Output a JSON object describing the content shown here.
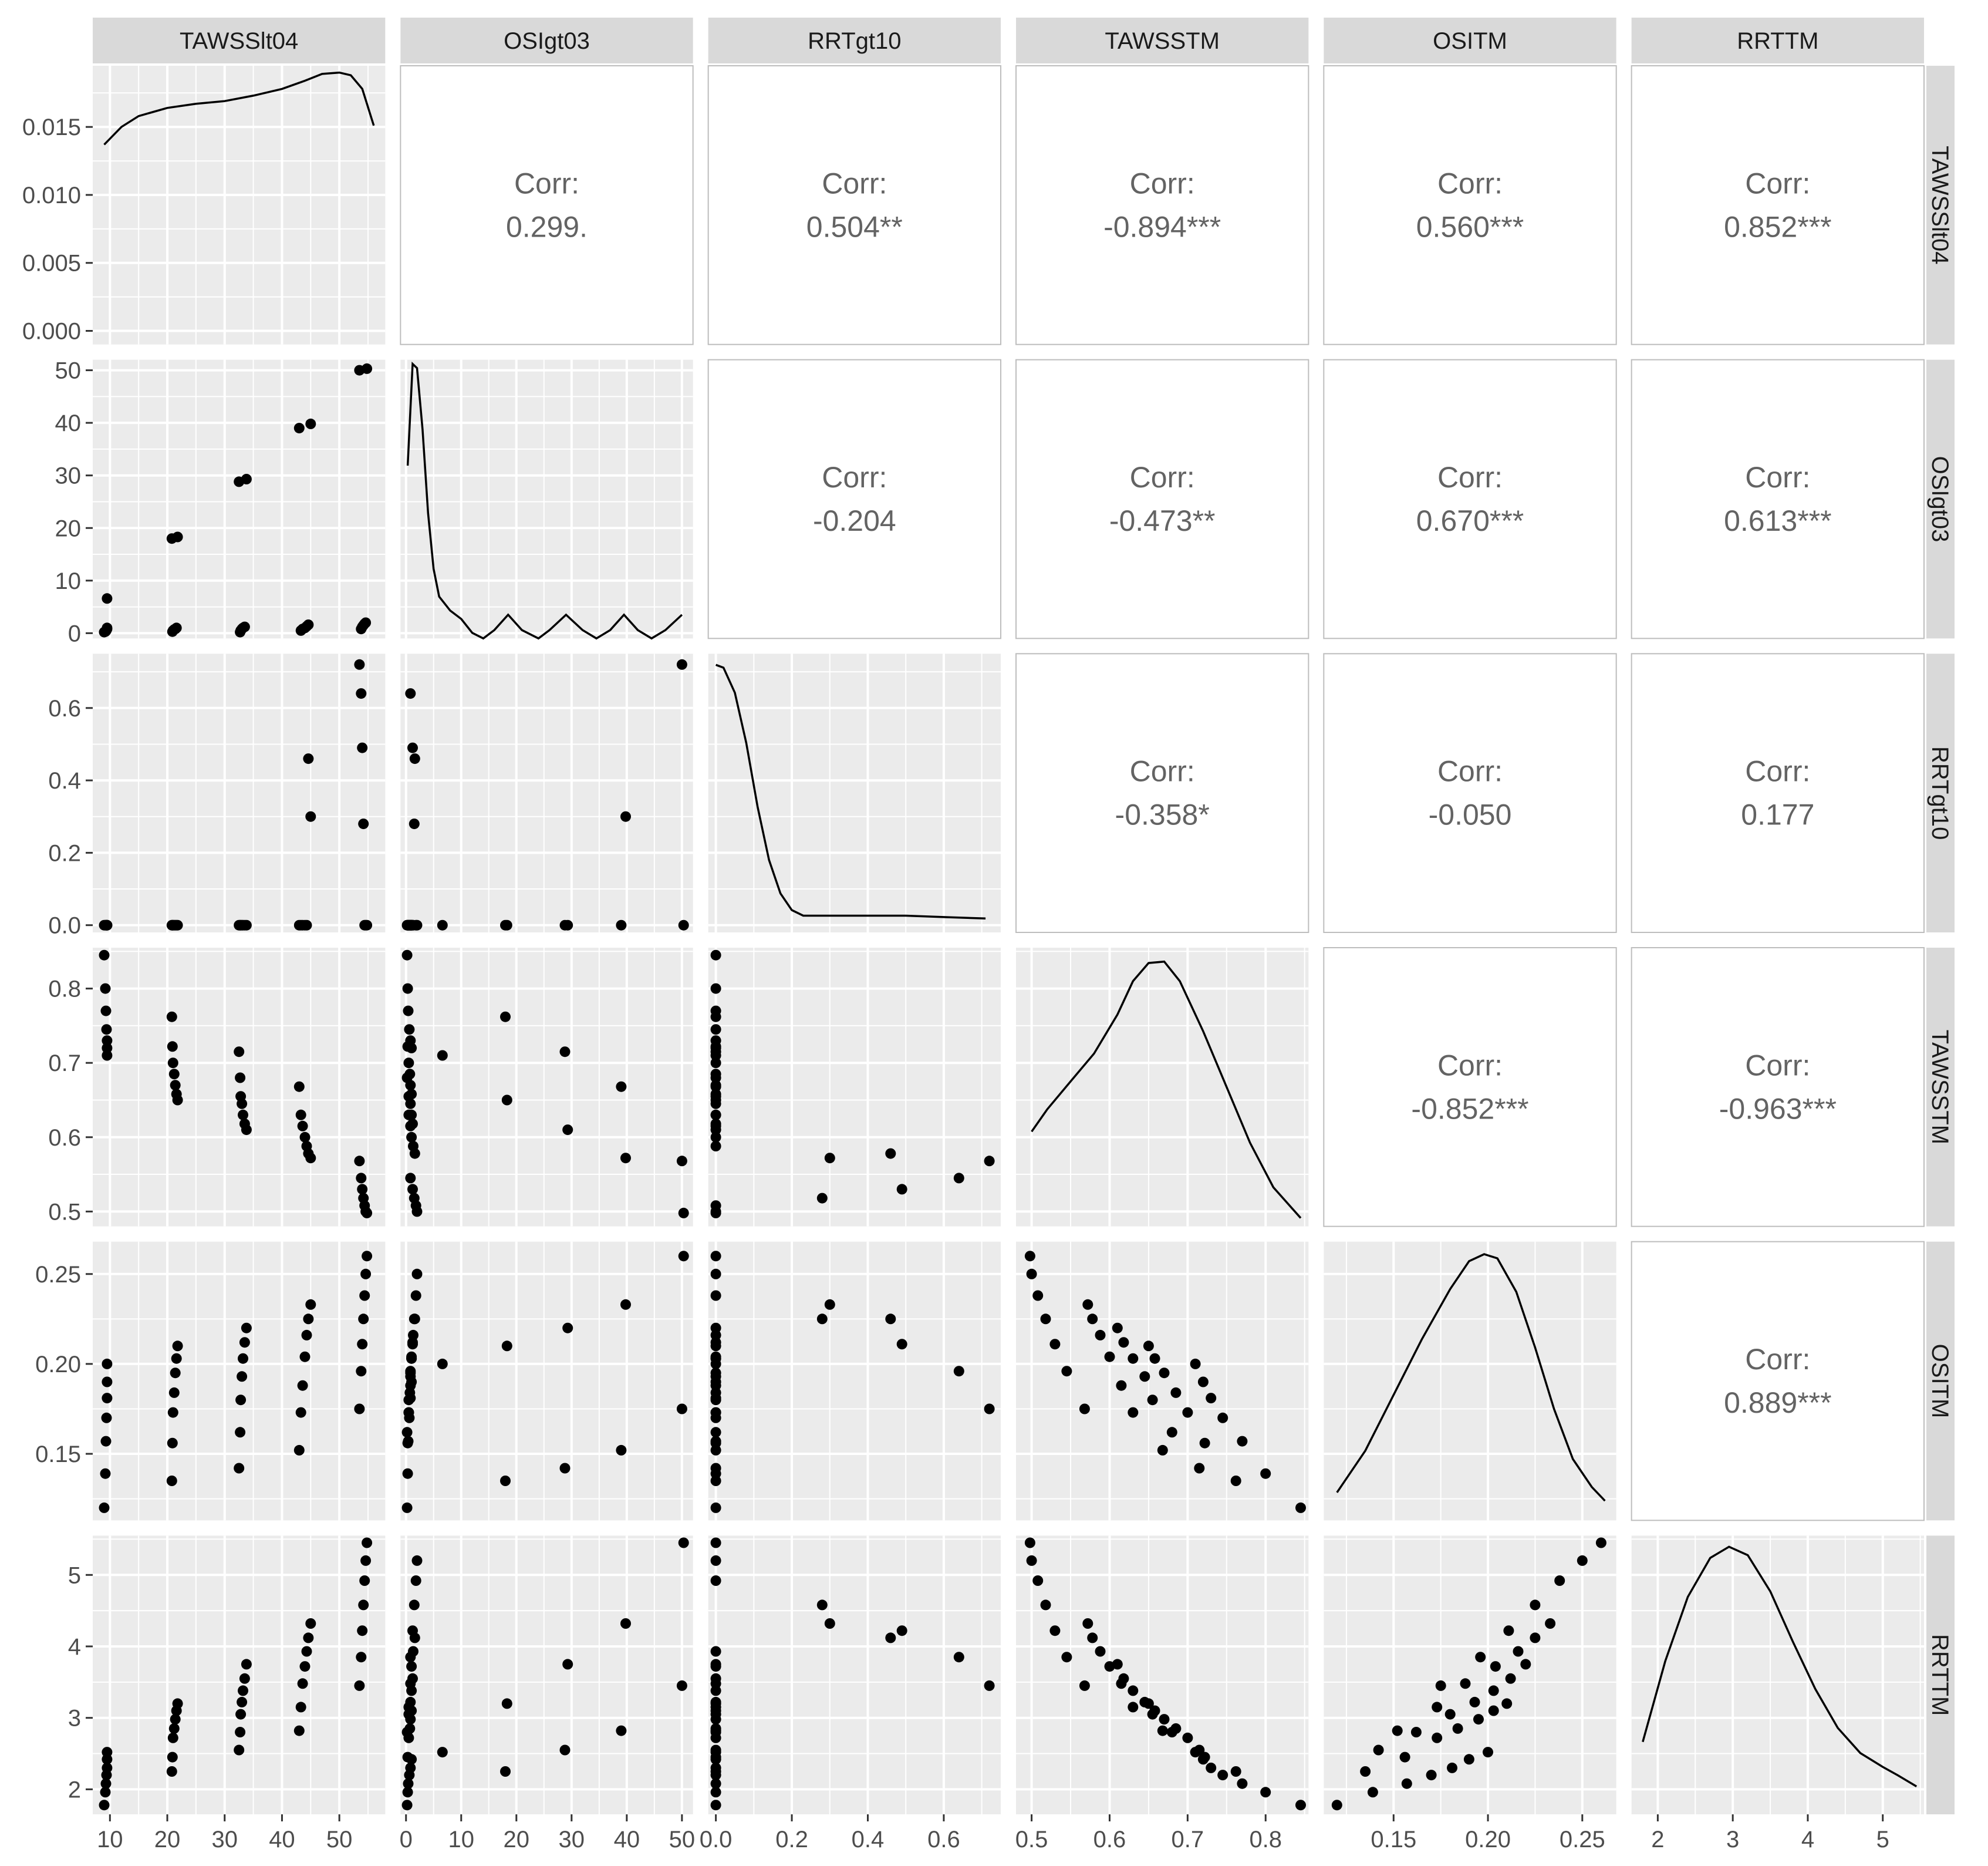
{
  "chart_data": {
    "type": "scatter",
    "title": "",
    "variables": [
      "TAWSSlt04",
      "OSIgt03",
      "RRTgt10",
      "TAWSSTM",
      "OSITM",
      "RRTTM"
    ],
    "corr_label": "Corr:",
    "correlations": [
      {
        "row": 0,
        "col": 1,
        "value": "0.299."
      },
      {
        "row": 0,
        "col": 2,
        "value": "0.504**"
      },
      {
        "row": 0,
        "col": 3,
        "value": "-0.894***"
      },
      {
        "row": 0,
        "col": 4,
        "value": "0.560***"
      },
      {
        "row": 0,
        "col": 5,
        "value": "0.852***"
      },
      {
        "row": 1,
        "col": 2,
        "value": "-0.204"
      },
      {
        "row": 1,
        "col": 3,
        "value": "-0.473**"
      },
      {
        "row": 1,
        "col": 4,
        "value": "0.670***"
      },
      {
        "row": 1,
        "col": 5,
        "value": "0.613***"
      },
      {
        "row": 2,
        "col": 3,
        "value": "-0.358*"
      },
      {
        "row": 2,
        "col": 4,
        "value": "-0.050"
      },
      {
        "row": 2,
        "col": 5,
        "value": "0.177"
      },
      {
        "row": 3,
        "col": 4,
        "value": "-0.852***"
      },
      {
        "row": 3,
        "col": 5,
        "value": "-0.963***"
      },
      {
        "row": 4,
        "col": 5,
        "value": "0.889***"
      }
    ],
    "ranges": [
      [
        7,
        58
      ],
      [
        -1,
        52
      ],
      [
        -0.02,
        0.75
      ],
      [
        0.48,
        0.855
      ],
      [
        0.113,
        0.268
      ],
      [
        1.65,
        5.55
      ]
    ],
    "x_ticks": [
      [
        10,
        20,
        30,
        40,
        50
      ],
      [
        0,
        10,
        20,
        30,
        40,
        50
      ],
      [
        0.0,
        0.2,
        0.4,
        0.6
      ],
      [
        0.5,
        0.6,
        0.7,
        0.8
      ],
      [
        0.15,
        0.2,
        0.25
      ],
      [
        2,
        3,
        4,
        5
      ]
    ],
    "x_tick_labels": [
      [
        "10",
        "20",
        "30",
        "40",
        "50"
      ],
      [
        "0",
        "10",
        "20",
        "30",
        "40",
        "50"
      ],
      [
        "0.0",
        "0.2",
        "0.4",
        "0.6"
      ],
      [
        "0.5",
        "0.6",
        "0.7",
        "0.8"
      ],
      [
        "0.15",
        "0.20",
        "0.25"
      ],
      [
        "2",
        "3",
        "4",
        "5"
      ]
    ],
    "y_ticks": [
      [
        10,
        20,
        30,
        40,
        50
      ],
      [
        0,
        10,
        20,
        30,
        40,
        50
      ],
      [
        0.0,
        0.2,
        0.4,
        0.6
      ],
      [
        0.5,
        0.6,
        0.7,
        0.8
      ],
      [
        0.15,
        0.2,
        0.25
      ],
      [
        2,
        3,
        4,
        5
      ]
    ],
    "y_tick_labels": [
      [],
      [
        "0",
        "10",
        "20",
        "30",
        "40",
        "50"
      ],
      [
        "0.0",
        "0.2",
        "0.4",
        "0.6"
      ],
      [
        "0.5",
        "0.6",
        "0.7",
        "0.8"
      ],
      [
        "0.15",
        "0.20",
        "0.25"
      ],
      [
        "2",
        "3",
        "4",
        "5"
      ]
    ],
    "density_axis": {
      "range": [
        -0.001,
        0.0195
      ],
      "ticks": [
        0.0,
        0.005,
        0.01,
        0.015
      ],
      "tick_labels": [
        "0.000",
        "0.005",
        "0.010",
        "0.015"
      ]
    },
    "density_curves": [
      [
        [
          9,
          0.0137
        ],
        [
          12,
          0.015
        ],
        [
          15,
          0.0158
        ],
        [
          20,
          0.0164
        ],
        [
          25,
          0.0167
        ],
        [
          30,
          0.0169
        ],
        [
          35,
          0.0173
        ],
        [
          40,
          0.0178
        ],
        [
          44,
          0.0184
        ],
        [
          47,
          0.0189
        ],
        [
          50,
          0.019
        ],
        [
          52,
          0.0188
        ],
        [
          54,
          0.0178
        ],
        [
          56,
          0.0151
        ]
      ],
      [
        [
          0.3,
          0.62
        ],
        [
          1.2,
          0.985
        ],
        [
          2,
          0.97
        ],
        [
          3,
          0.75
        ],
        [
          4,
          0.45
        ],
        [
          5,
          0.25
        ],
        [
          6,
          0.15
        ],
        [
          8,
          0.1
        ],
        [
          10,
          0.07
        ],
        [
          12,
          0.02
        ],
        [
          14,
          0.0
        ],
        [
          16,
          0.03
        ],
        [
          18.5,
          0.085
        ],
        [
          21,
          0.03
        ],
        [
          24,
          0.0
        ],
        [
          26,
          0.03
        ],
        [
          29,
          0.085
        ],
        [
          32,
          0.03
        ],
        [
          34.5,
          0.0
        ],
        [
          37,
          0.03
        ],
        [
          39.5,
          0.085
        ],
        [
          42,
          0.03
        ],
        [
          44.5,
          0.0
        ],
        [
          47,
          0.03
        ],
        [
          50,
          0.085
        ]
      ],
      [
        [
          0.0,
          0.96
        ],
        [
          0.02,
          0.95
        ],
        [
          0.05,
          0.86
        ],
        [
          0.08,
          0.68
        ],
        [
          0.11,
          0.45
        ],
        [
          0.14,
          0.26
        ],
        [
          0.17,
          0.14
        ],
        [
          0.2,
          0.08
        ],
        [
          0.23,
          0.06
        ],
        [
          0.3,
          0.06
        ],
        [
          0.4,
          0.06
        ],
        [
          0.5,
          0.06
        ],
        [
          0.6,
          0.055
        ],
        [
          0.71,
          0.05
        ]
      ],
      [
        [
          0.5,
          0.34
        ],
        [
          0.52,
          0.42
        ],
        [
          0.55,
          0.52
        ],
        [
          0.58,
          0.62
        ],
        [
          0.61,
          0.76
        ],
        [
          0.63,
          0.88
        ],
        [
          0.65,
          0.945
        ],
        [
          0.67,
          0.95
        ],
        [
          0.69,
          0.88
        ],
        [
          0.72,
          0.7
        ],
        [
          0.75,
          0.5
        ],
        [
          0.78,
          0.3
        ],
        [
          0.81,
          0.14
        ],
        [
          0.845,
          0.03
        ]
      ],
      [
        [
          0.12,
          0.1
        ],
        [
          0.135,
          0.25
        ],
        [
          0.15,
          0.45
        ],
        [
          0.165,
          0.65
        ],
        [
          0.18,
          0.83
        ],
        [
          0.19,
          0.93
        ],
        [
          0.198,
          0.955
        ],
        [
          0.205,
          0.94
        ],
        [
          0.215,
          0.82
        ],
        [
          0.225,
          0.62
        ],
        [
          0.235,
          0.4
        ],
        [
          0.245,
          0.22
        ],
        [
          0.255,
          0.12
        ],
        [
          0.262,
          0.07
        ]
      ],
      [
        [
          1.8,
          0.26
        ],
        [
          2.1,
          0.55
        ],
        [
          2.4,
          0.78
        ],
        [
          2.7,
          0.92
        ],
        [
          2.95,
          0.96
        ],
        [
          3.2,
          0.93
        ],
        [
          3.5,
          0.8
        ],
        [
          3.8,
          0.62
        ],
        [
          4.1,
          0.45
        ],
        [
          4.4,
          0.31
        ],
        [
          4.7,
          0.22
        ],
        [
          5.0,
          0.17
        ],
        [
          5.2,
          0.14
        ],
        [
          5.45,
          0.1
        ]
      ]
    ],
    "observations": [
      [
        9.0,
        0.2,
        0.0,
        0.845,
        0.12,
        1.78
      ],
      [
        9.2,
        0.3,
        0.0,
        0.8,
        0.139,
        1.96
      ],
      [
        9.3,
        0.4,
        0.0,
        0.77,
        0.157,
        2.08
      ],
      [
        9.4,
        0.6,
        0.0,
        0.745,
        0.17,
        2.2
      ],
      [
        9.5,
        0.8,
        0.0,
        0.73,
        0.181,
        2.3
      ],
      [
        9.5,
        1.0,
        0.0,
        0.72,
        0.19,
        2.42
      ],
      [
        9.5,
        6.6,
        0.0,
        0.71,
        0.2,
        2.52
      ],
      [
        20.8,
        18.0,
        0.0,
        0.762,
        0.135,
        2.25
      ],
      [
        20.9,
        0.3,
        0.0,
        0.722,
        0.156,
        2.45
      ],
      [
        21.0,
        0.5,
        0.0,
        0.7,
        0.173,
        2.72
      ],
      [
        21.2,
        0.7,
        0.0,
        0.685,
        0.184,
        2.85
      ],
      [
        21.4,
        0.8,
        0.0,
        0.67,
        0.195,
        2.98
      ],
      [
        21.6,
        1.0,
        0.0,
        0.658,
        0.203,
        3.1
      ],
      [
        21.8,
        18.3,
        0.0,
        0.65,
        0.21,
        3.2
      ],
      [
        32.5,
        28.8,
        0.0,
        0.715,
        0.142,
        2.55
      ],
      [
        32.7,
        0.2,
        0.0,
        0.68,
        0.162,
        2.8
      ],
      [
        32.8,
        0.5,
        0.0,
        0.655,
        0.18,
        3.05
      ],
      [
        33.0,
        0.8,
        0.0,
        0.645,
        0.193,
        3.22
      ],
      [
        33.2,
        1.0,
        0.0,
        0.63,
        0.203,
        3.38
      ],
      [
        33.5,
        1.2,
        0.0,
        0.618,
        0.212,
        3.55
      ],
      [
        33.8,
        29.3,
        0.0,
        0.61,
        0.22,
        3.75
      ],
      [
        43.0,
        39.0,
        0.0,
        0.668,
        0.152,
        2.82
      ],
      [
        43.3,
        0.5,
        0.0,
        0.63,
        0.173,
        3.15
      ],
      [
        43.6,
        0.8,
        0.0,
        0.615,
        0.188,
        3.48
      ],
      [
        44.0,
        1.0,
        0.0,
        0.6,
        0.204,
        3.72
      ],
      [
        44.3,
        1.3,
        0.0,
        0.588,
        0.216,
        3.93
      ],
      [
        44.6,
        1.6,
        0.46,
        0.578,
        0.225,
        4.12
      ],
      [
        45.0,
        39.8,
        0.3,
        0.572,
        0.233,
        4.32
      ],
      [
        53.5,
        50.0,
        0.72,
        0.568,
        0.175,
        3.45
      ],
      [
        53.8,
        0.8,
        0.64,
        0.545,
        0.196,
        3.85
      ],
      [
        54.0,
        1.2,
        0.49,
        0.53,
        0.211,
        4.22
      ],
      [
        54.2,
        1.5,
        0.28,
        0.518,
        0.225,
        4.58
      ],
      [
        54.4,
        1.8,
        0.0,
        0.508,
        0.238,
        4.92
      ],
      [
        54.6,
        2.0,
        0.0,
        0.5,
        0.25,
        5.2
      ],
      [
        54.8,
        50.3,
        0.0,
        0.498,
        0.26,
        5.45
      ]
    ]
  }
}
